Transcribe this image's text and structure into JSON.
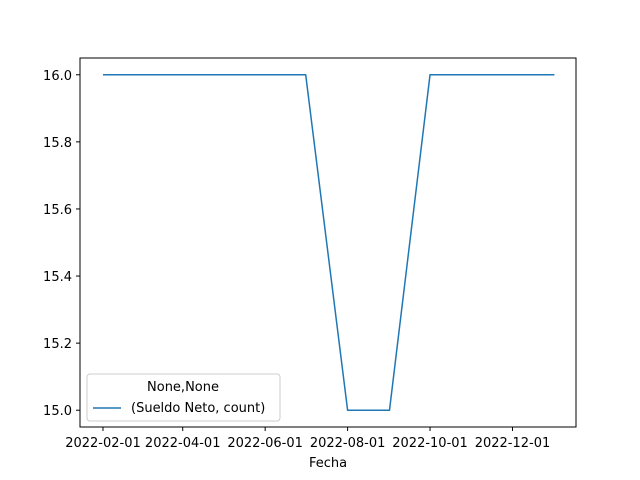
{
  "chart_data": {
    "type": "line",
    "xlabel": "Fecha",
    "ylabel": "",
    "x": [
      "2022-02-01",
      "2022-03-01",
      "2022-04-01",
      "2022-05-01",
      "2022-06-01",
      "2022-07-01",
      "2022-08-01",
      "2022-09-01",
      "2022-10-01",
      "2022-11-01",
      "2022-12-01",
      "2023-01-01"
    ],
    "series": [
      {
        "name": "(Sueldo Neto, count)",
        "values": [
          16,
          16,
          16,
          16,
          16,
          16,
          15,
          15,
          16,
          16,
          16,
          16
        ],
        "color": "#1f77b4"
      }
    ],
    "xlim": [
      "2022-01-15",
      "2023-01-17"
    ],
    "ylim": [
      14.95,
      16.05
    ],
    "x_ticks": [
      "2022-02-01",
      "2022-04-01",
      "2022-06-01",
      "2022-08-01",
      "2022-10-01",
      "2022-12-01"
    ],
    "y_ticks": [
      "15.0",
      "15.2",
      "15.4",
      "15.6",
      "15.8",
      "16.0"
    ],
    "legend": {
      "title": "None,None",
      "placement": "lower-left"
    },
    "grid": false
  }
}
